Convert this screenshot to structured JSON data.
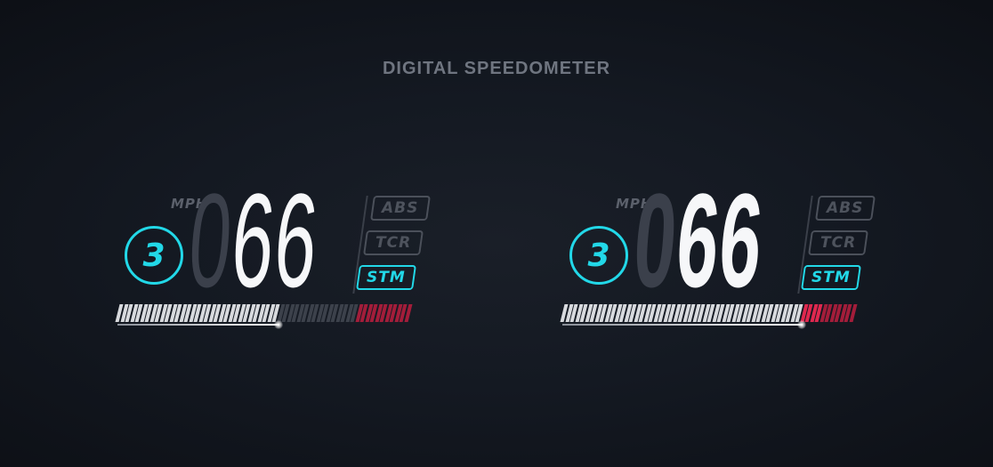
{
  "title": "DIGITAL SPEEDOMETER",
  "colors": {
    "accent": "#22d8e8",
    "redline": "#a31d3a",
    "redline_active": "#e0284f",
    "tick_on": "#d8dade",
    "tick_off": "#3c414b",
    "dim": "#4e535d"
  },
  "clusters": [
    {
      "gear": "3",
      "unit": "MPH",
      "speed_leading": "0",
      "speed_value": "66",
      "badges": {
        "abs": "ABS",
        "tcr": "TCR",
        "stm": "STM"
      },
      "active_badge": "stm",
      "tach": {
        "total_ticks": 60,
        "lit_ticks": 33,
        "redline_from": 49
      }
    },
    {
      "gear": "3",
      "unit": "MPH",
      "speed_leading": "0",
      "speed_value": "66",
      "badges": {
        "abs": "ABS",
        "tcr": "TCR",
        "stm": "STM"
      },
      "active_badge": "stm",
      "tach": {
        "total_ticks": 60,
        "lit_ticks": 49,
        "redline_from": 49
      }
    }
  ]
}
